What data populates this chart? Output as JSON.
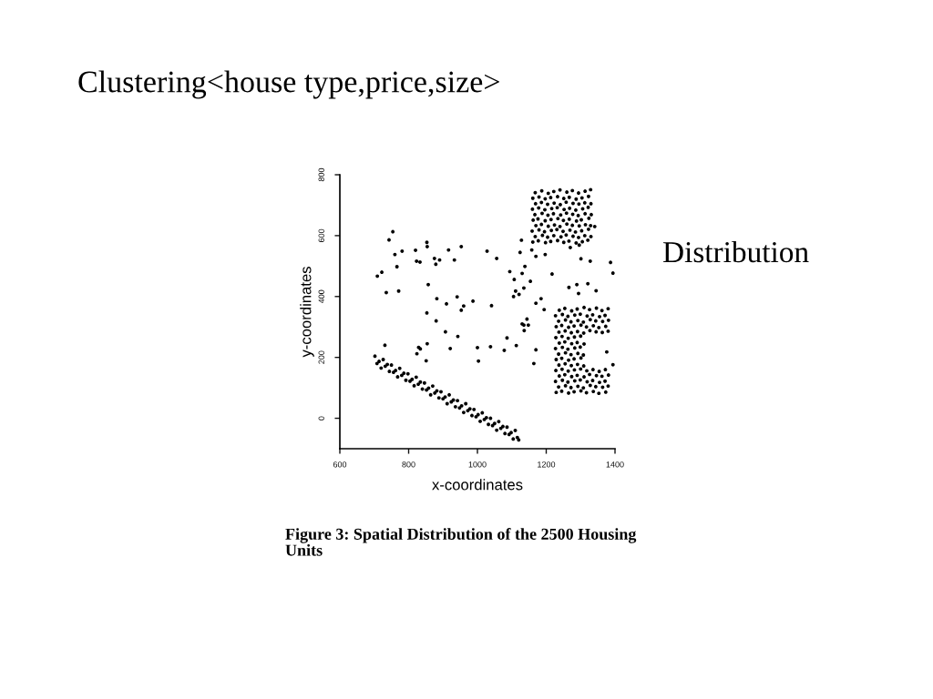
{
  "chart_data": {
    "type": "scatter",
    "title": "Clustering<house type,price,size>",
    "xlabel": "x-coordinates",
    "ylabel": "y-coordinates",
    "annotations": [
      "Distribution",
      "Figure 3: Spatial Distribution of the 2500 Housing Units"
    ],
    "xlim": [
      600,
      1400
    ],
    "ylim": [
      -100,
      800
    ],
    "xticks": [
      600,
      800,
      1000,
      1200,
      1400
    ],
    "yticks": [
      0,
      200,
      400,
      600,
      800
    ],
    "marker": "circle",
    "series": [
      {
        "color": "#000000",
        "x": [
          754,
          743,
          760,
          781,
          766,
          709,
          722,
          735,
          771,
          820,
          823,
          833,
          853,
          854,
          875,
          879,
          890,
          857,
          916,
          933,
          953,
          882,
          910,
          941,
          960,
          987,
          953,
          853,
          880,
          907,
          943,
          731,
          829,
          834,
          854,
          921,
          824,
          851,
          1000,
          1003,
          1341,
          1128,
          1028,
          1056,
          1124,
          1158,
          1170,
          1197,
          1270,
          1296,
          1301,
          1328,
          1387,
          1394,
          1138,
          1094,
          1130,
          1107,
          1154,
          1217,
          1135,
          1111,
          1121,
          1105,
          1266,
          1289,
          1321,
          1294,
          1345,
          1185,
          1170,
          1041,
          1194,
          1144,
          1130,
          1135,
          1148,
          1136,
          1086,
          1038,
          1078,
          1113,
          1170,
          1164,
          1376,
          1394
        ],
        "values": [
          613,
          586,
          538,
          549,
          498,
          467,
          480,
          413,
          418,
          552,
          516,
          513,
          578,
          564,
          525,
          506,
          520,
          439,
          553,
          520,
          564,
          393,
          376,
          399,
          369,
          385,
          355,
          346,
          320,
          284,
          269,
          240,
          233,
          228,
          245,
          229,
          212,
          189,
          232,
          188,
          630,
          585,
          549,
          525,
          545,
          553,
          532,
          538,
          561,
          569,
          524,
          516,
          512,
          477,
          499,
          482,
          476,
          456,
          450,
          474,
          428,
          418,
          407,
          400,
          430,
          439,
          442,
          410,
          419,
          393,
          378,
          370,
          357,
          326,
          310,
          306,
          306,
          288,
          264,
          235,
          223,
          239,
          225,
          180,
          218,
          176
        ]
      },
      {
        "color": "#000000",
        "x": [
          702,
          708,
          714,
          720,
          726,
          732,
          738,
          744,
          750,
          756,
          762,
          768,
          774,
          780,
          786,
          792,
          798,
          804,
          810,
          816,
          822,
          828,
          834,
          840,
          846,
          852,
          858,
          864,
          870,
          876,
          882,
          888,
          894,
          900,
          906,
          912,
          918,
          924,
          930,
          936,
          942,
          948,
          954,
          960,
          966,
          972,
          978,
          984,
          990,
          996,
          1002,
          1008,
          1014,
          1020,
          1026,
          1032,
          1038,
          1044,
          1050,
          1056,
          1062,
          1068,
          1074,
          1080,
          1086,
          1092,
          1098,
          1104,
          1110,
          1116,
          1120
        ],
        "values": [
          204,
          180,
          187,
          165,
          193,
          171,
          177,
          154,
          175,
          151,
          157,
          136,
          164,
          141,
          148,
          125,
          146,
          122,
          128,
          107,
          135,
          112,
          119,
          96,
          116,
          93,
          99,
          77,
          106,
          83,
          90,
          67,
          87,
          64,
          70,
          48,
          77,
          54,
          60,
          38,
          58,
          34,
          41,
          19,
          48,
          25,
          31,
          9,
          29,
          5,
          12,
          -10,
          18,
          -4,
          2,
          -20,
          0,
          -24,
          -17,
          -39,
          -11,
          -33,
          -27,
          -50,
          -29,
          -53,
          -47,
          -68,
          -40,
          -63,
          -71
        ]
      },
      {
        "color": "#000000",
        "x": [
          1161,
          1177,
          1198,
          1213,
          1233,
          1251,
          1266,
          1287,
          1305,
          1321,
          1168,
          1189,
          1204,
          1222,
          1243,
          1258,
          1278,
          1294,
          1312,
          1330,
          1159,
          1179,
          1195,
          1215,
          1231,
          1249,
          1269,
          1285,
          1303,
          1323,
          1170,
          1186,
          1206,
          1224,
          1240,
          1260,
          1276,
          1296,
          1314,
          1329,
          1162,
          1176,
          1197,
          1214,
          1234,
          1250,
          1267,
          1288,
          1302,
          1324,
          1167,
          1188,
          1205,
          1221,
          1242,
          1259,
          1277,
          1293,
          1313,
          1331,
          1160,
          1178,
          1196,
          1216,
          1232,
          1252,
          1268,
          1286,
          1306,
          1322,
          1169,
          1186,
          1204,
          1223,
          1241,
          1258,
          1278,
          1295,
          1312,
          1330,
          1161,
          1179,
          1197,
          1213,
          1233,
          1251,
          1267,
          1287,
          1304,
          1323,
          1168,
          1187,
          1206,
          1222,
          1240,
          1260,
          1276,
          1294,
          1313,
          1329
        ],
        "values": [
          579,
          583,
          577,
          581,
          584,
          578,
          582,
          576,
          580,
          585,
          597,
          601,
          595,
          600,
          596,
          602,
          598,
          594,
          600,
          597,
          615,
          619,
          613,
          617,
          620,
          614,
          618,
          612,
          616,
          621,
          633,
          637,
          631,
          635,
          630,
          638,
          634,
          632,
          636,
          633,
          651,
          655,
          649,
          653,
          656,
          650,
          654,
          648,
          652,
          657,
          669,
          673,
          667,
          672,
          668,
          674,
          670,
          666,
          672,
          669,
          687,
          691,
          685,
          689,
          692,
          686,
          690,
          684,
          688,
          693,
          705,
          709,
          703,
          707,
          702,
          710,
          706,
          704,
          708,
          705,
          723,
          727,
          721,
          725,
          728,
          722,
          726,
          720,
          724,
          729,
          741,
          747,
          739,
          745,
          750,
          743,
          748,
          740,
          746,
          751
        ]
      },
      {
        "color": "#000000",
        "x": [
          1229,
          1245,
          1265,
          1281,
          1301,
          1317,
          1337,
          1353,
          1373,
          1236,
          1256,
          1272,
          1292,
          1308,
          1328,
          1344,
          1364,
          1380,
          1227,
          1247,
          1263,
          1283,
          1299,
          1319,
          1335,
          1355,
          1371,
          1238,
          1254,
          1274,
          1290,
          1310,
          1326,
          1346,
          1362,
          1381,
          1228,
          1246,
          1264,
          1282,
          1300,
          1318,
          1336,
          1354,
          1372,
          1237,
          1255,
          1273,
          1291,
          1309,
          1229,
          1245,
          1265,
          1281,
          1301,
          1236,
          1256,
          1272,
          1292,
          1308,
          1227,
          1247,
          1263,
          1283,
          1299,
          1238,
          1254,
          1274,
          1290,
          1310,
          1228,
          1246,
          1264,
          1282,
          1300,
          1237,
          1255,
          1273,
          1291,
          1309,
          1327,
          1345,
          1363,
          1380,
          1229,
          1245,
          1265,
          1281,
          1301,
          1317,
          1337,
          1353,
          1373,
          1236,
          1256,
          1272,
          1292,
          1308,
          1328,
          1344,
          1364,
          1381,
          1227,
          1247,
          1263,
          1283,
          1299,
          1319,
          1335,
          1355,
          1371,
          1238,
          1254,
          1274,
          1290,
          1310,
          1326,
          1346,
          1362,
          1380
        ],
        "values": [
          85,
          89,
          83,
          87,
          90,
          84,
          88,
          82,
          86,
          103,
          107,
          101,
          105,
          100,
          108,
          104,
          102,
          106,
          121,
          125,
          119,
          123,
          126,
          120,
          124,
          118,
          122,
          139,
          143,
          137,
          141,
          136,
          144,
          140,
          138,
          142,
          157,
          161,
          155,
          159,
          162,
          156,
          160,
          154,
          160,
          175,
          179,
          173,
          177,
          172,
          193,
          197,
          191,
          195,
          198,
          211,
          215,
          209,
          213,
          208,
          229,
          233,
          227,
          231,
          234,
          247,
          251,
          245,
          249,
          244,
          265,
          269,
          263,
          267,
          270,
          283,
          287,
          281,
          285,
          280,
          288,
          284,
          282,
          286,
          301,
          305,
          299,
          303,
          306,
          300,
          304,
          298,
          302,
          319,
          323,
          317,
          321,
          316,
          324,
          320,
          318,
          322,
          337,
          341,
          335,
          339,
          342,
          336,
          340,
          334,
          338,
          355,
          361,
          353,
          359,
          364,
          357,
          362,
          354,
          360
        ]
      }
    ]
  }
}
